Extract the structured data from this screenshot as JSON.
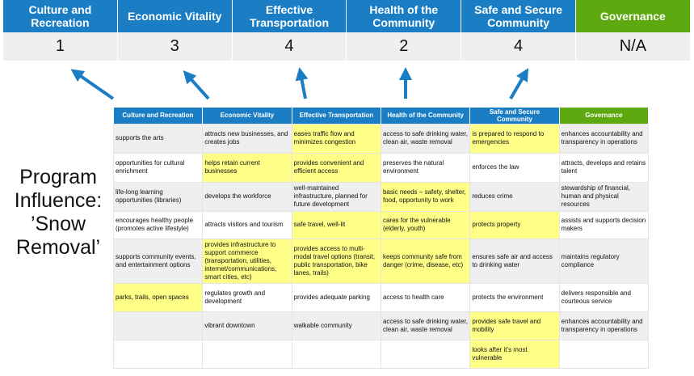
{
  "top": {
    "headers": [
      "Culture and Recreation",
      "Economic Vitality",
      "Effective Transportation",
      "Health of the Community",
      "Safe and Secure Community",
      "Governance"
    ],
    "scores": [
      "1",
      "3",
      "4",
      "2",
      "4",
      "N/A"
    ]
  },
  "side_label": [
    "Program",
    "Influence:",
    "’Snow",
    "Removal’"
  ],
  "colors": {
    "header_blue": "#1b7ec5",
    "governance_green": "#5da90f",
    "highlight": "#ffff88",
    "arrow": "#1b7ec5"
  },
  "table": {
    "headers": [
      "Culture and Recreation",
      "Economic Vitality",
      "Effective Transportation",
      "Health of the Community",
      "Safe and Secure Community",
      "Governance"
    ],
    "rows": [
      {
        "cells": [
          "supports the arts",
          "attracts new businesses, and creates jobs",
          "eases traffic flow and minimizes congestion",
          "access to safe drinking water, clean air, waste removal",
          "is prepared to respond to emergencies",
          "enhances accountability and transparency in operations"
        ],
        "highlighted": [
          false,
          false,
          true,
          false,
          true,
          false
        ]
      },
      {
        "cells": [
          "opportunities for cultural enrichment",
          "helps retain current businesses",
          "provides convenient and efficient access",
          "preserves the natural environment",
          "enforces the law",
          "attracts, develops and retains talent"
        ],
        "highlighted": [
          false,
          true,
          true,
          false,
          false,
          false
        ]
      },
      {
        "cells": [
          "life-long learning opportunities (libraries)",
          "develops the workforce",
          "well-maintained infrastructure, planned for future development",
          "basic needs – safety, shelter, food, opportunity to work",
          "reduces crime",
          "stewardship of financial, human and physical resources"
        ],
        "highlighted": [
          false,
          false,
          false,
          true,
          false,
          false
        ]
      },
      {
        "cells": [
          "encourages healthy people (promotes active lifestyle)",
          "attracts visitors and tourism",
          "safe travel, well-lit",
          "cares for the vulnerable (elderly, youth)",
          "protects property",
          "assists and supports decision makers"
        ],
        "highlighted": [
          false,
          false,
          true,
          true,
          true,
          false
        ]
      },
      {
        "cells": [
          "supports community events, and entertainment options",
          "provides infrastructure to support commerce (transportation, utilities, internet/communications, smart cities, etc)",
          "provides access to multi-modal travel options (transit, public transportation, bike lanes, trails)",
          "keeps community safe from danger (crime, disease, etc)",
          "ensures safe air and access to drinking water",
          "maintains regulatory compliance"
        ],
        "highlighted": [
          false,
          true,
          true,
          true,
          false,
          false
        ]
      },
      {
        "cells": [
          "parks, trails, open spaces",
          "regulates growth and development",
          "provides adequate parking",
          "access to health care",
          "protects the environment",
          "delivers responsible and courteous service"
        ],
        "highlighted": [
          true,
          false,
          false,
          false,
          false,
          false
        ]
      },
      {
        "cells": [
          "",
          "vibrant downtown",
          "walkable community",
          "access to safe drinking water, clean air, waste removal",
          "provides safe travel and mobility",
          "enhances accountability and transparency in operations"
        ],
        "highlighted": [
          false,
          false,
          false,
          false,
          true,
          false
        ]
      },
      {
        "cells": [
          "",
          "",
          "",
          "",
          "looks after it’s most vulnerable",
          ""
        ],
        "highlighted": [
          false,
          false,
          false,
          false,
          true,
          false
        ]
      }
    ]
  }
}
